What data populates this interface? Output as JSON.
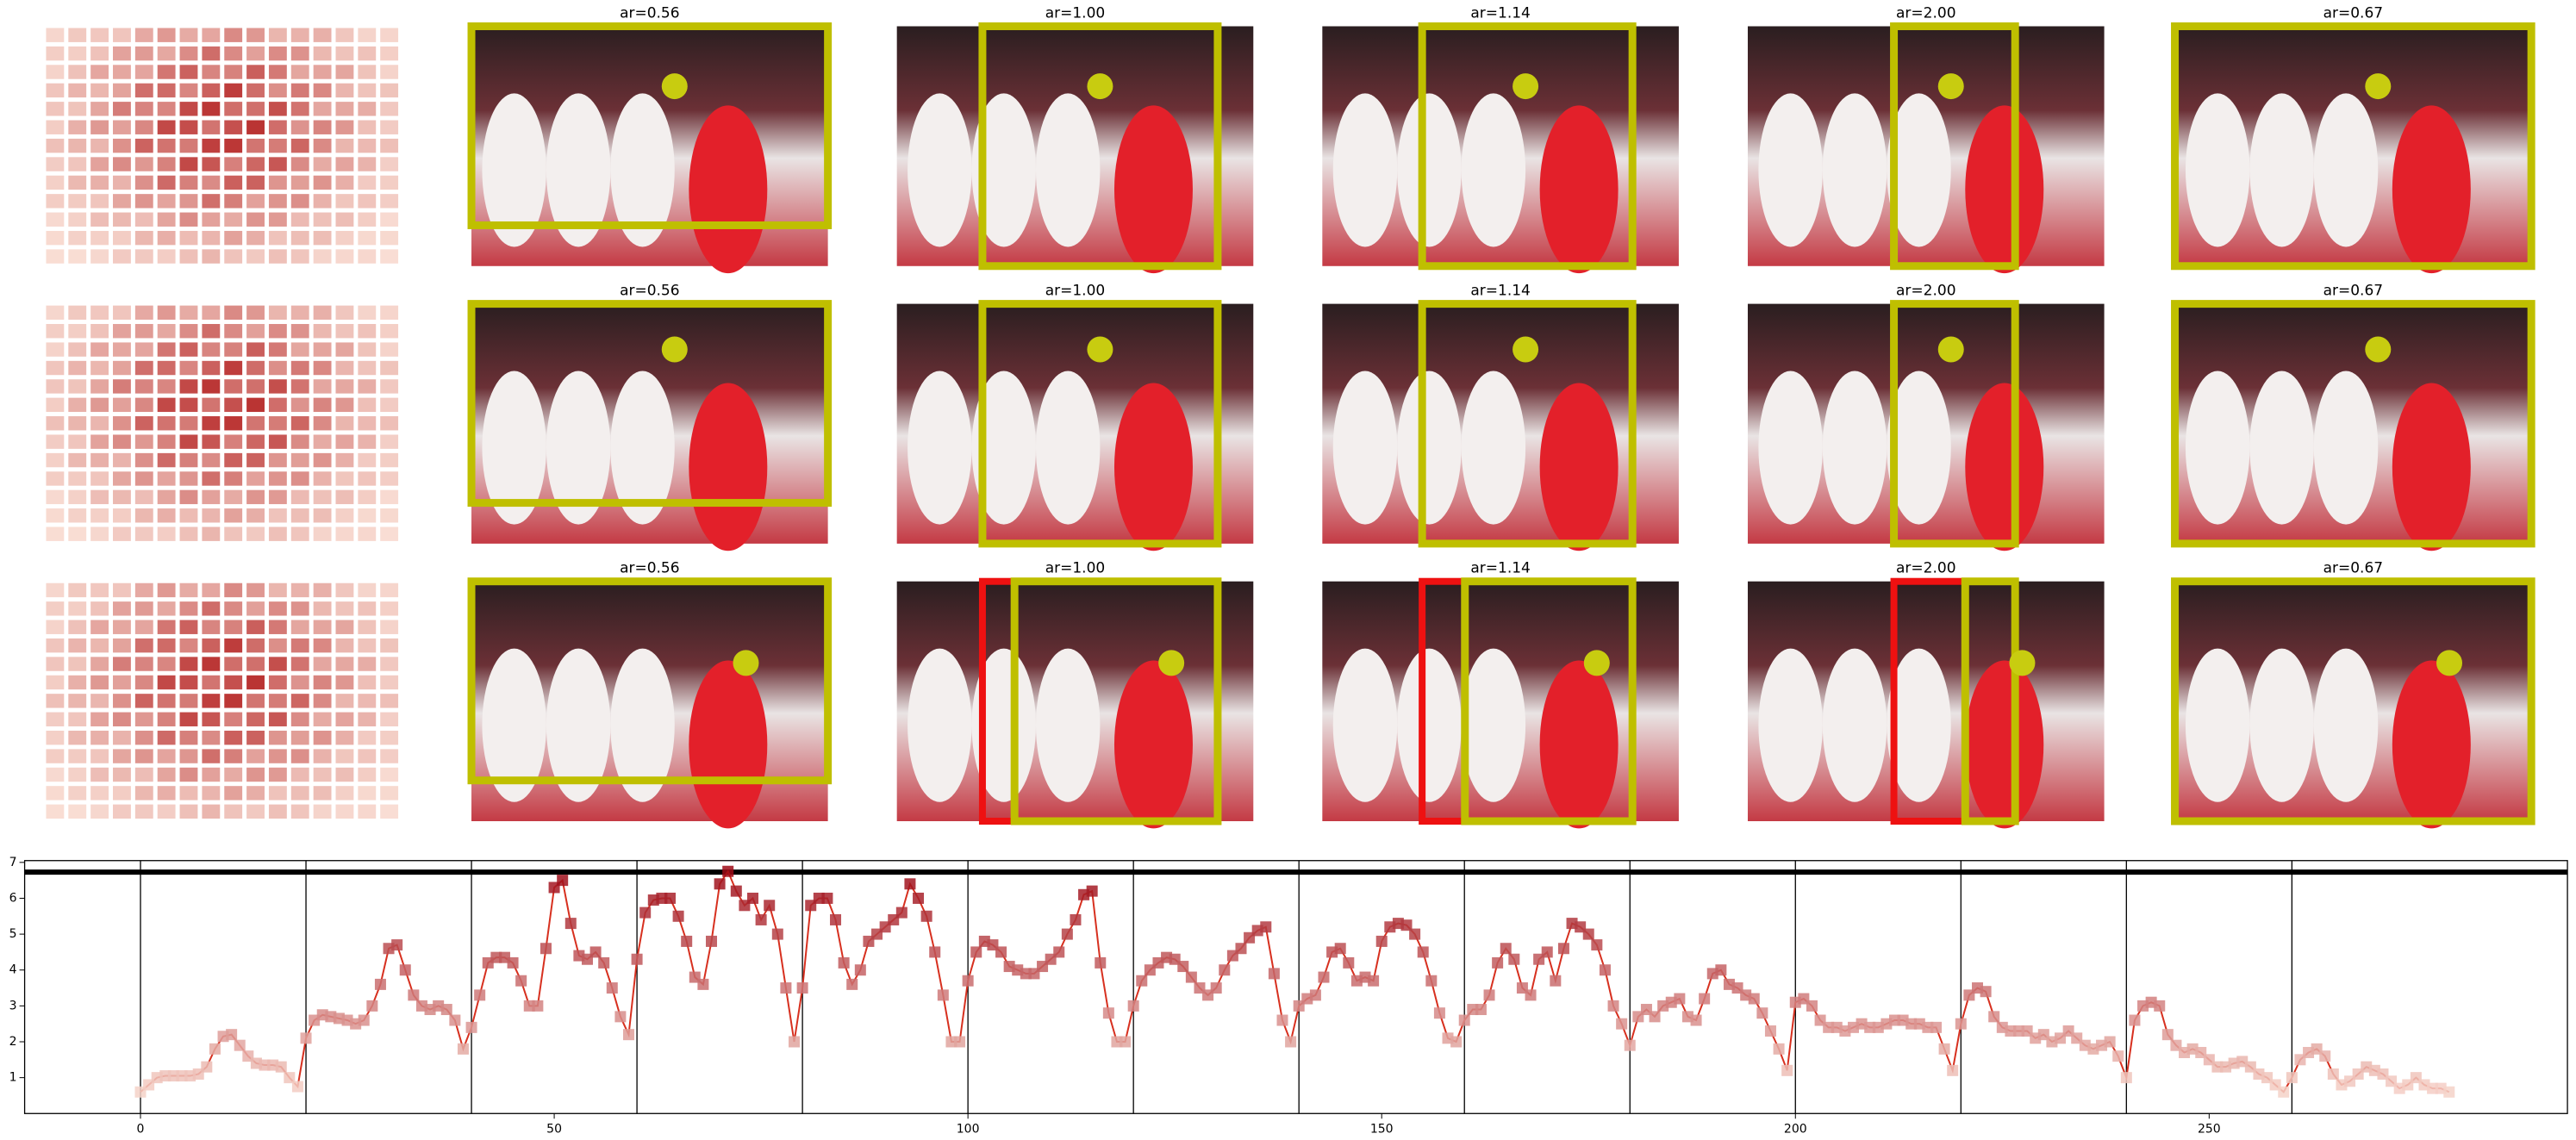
{
  "panels": {
    "rows": [
      [
        "ar=0.56",
        "ar=1.00",
        "ar=1.14",
        "ar=2.00",
        "ar=0.67"
      ],
      [
        "ar=0.56",
        "ar=1.00",
        "ar=1.14",
        "ar=2.00",
        "ar=0.67"
      ],
      [
        "ar=0.56",
        "ar=1.00",
        "ar=1.14",
        "ar=2.00",
        "ar=0.67"
      ]
    ]
  },
  "chart_data": {
    "type": "line",
    "x": [
      0,
      1,
      2,
      3,
      4,
      5,
      6,
      7,
      8,
      9,
      10,
      11,
      12,
      13,
      14,
      15,
      16,
      17,
      18,
      19,
      20,
      21,
      22,
      23,
      24,
      25,
      26,
      27,
      28,
      29,
      30,
      31,
      32,
      33,
      34,
      35,
      36,
      37,
      38,
      39,
      40,
      41,
      42,
      43,
      44,
      45,
      46,
      47,
      48,
      49,
      50,
      51,
      52,
      53,
      54,
      55,
      56,
      57,
      58,
      59,
      60,
      61,
      62,
      63,
      64,
      65,
      66,
      67,
      68,
      69,
      70,
      71,
      72,
      73,
      74,
      75,
      76,
      77,
      78,
      79,
      80,
      81,
      82,
      83,
      84,
      85,
      86,
      87,
      88,
      89,
      90,
      91,
      92,
      93,
      94,
      95,
      96,
      97,
      98,
      99,
      100,
      101,
      102,
      103,
      104,
      105,
      106,
      107,
      108,
      109,
      110,
      111,
      112,
      113,
      114,
      115,
      116,
      117,
      118,
      119,
      120,
      121,
      122,
      123,
      124,
      125,
      126,
      127,
      128,
      129,
      130,
      131,
      132,
      133,
      134,
      135,
      136,
      137,
      138,
      139,
      140,
      141,
      142,
      143,
      144,
      145,
      146,
      147,
      148,
      149,
      150,
      151,
      152,
      153,
      154,
      155,
      156,
      157,
      158,
      159,
      160,
      161,
      162,
      163,
      164,
      165,
      166,
      167,
      168,
      169,
      170,
      171,
      172,
      173,
      174,
      175,
      176,
      177,
      178,
      179,
      180,
      181,
      182,
      183,
      184,
      185,
      186,
      187,
      188,
      189,
      190,
      191,
      192,
      193,
      194,
      195,
      196,
      197,
      198,
      199,
      200,
      201,
      202,
      203,
      204,
      205,
      206,
      207,
      208,
      209,
      210,
      211,
      212,
      213,
      214,
      215,
      216,
      217,
      218,
      219,
      220,
      221,
      222,
      223,
      224,
      225,
      226,
      227,
      228,
      229,
      230,
      231,
      232,
      233,
      234,
      235,
      236,
      237,
      238,
      239,
      240,
      241,
      242,
      243,
      244,
      245,
      246,
      247,
      248,
      249,
      250,
      251,
      252,
      253,
      254,
      255,
      256,
      257,
      258,
      259,
      260,
      261,
      262,
      263,
      264,
      265,
      266,
      267,
      268,
      269,
      270,
      271,
      272,
      273,
      274,
      275,
      276,
      277,
      278,
      279
    ],
    "values": [
      0.6,
      0.8,
      1.0,
      1.05,
      1.05,
      1.05,
      1.05,
      1.1,
      1.3,
      1.8,
      2.15,
      2.2,
      1.9,
      1.6,
      1.4,
      1.35,
      1.35,
      1.3,
      1.0,
      0.75,
      2.1,
      2.6,
      2.75,
      2.7,
      2.65,
      2.6,
      2.5,
      2.6,
      3.0,
      3.6,
      4.6,
      4.7,
      4.0,
      3.3,
      3.0,
      2.9,
      3.0,
      2.9,
      2.6,
      1.8,
      2.4,
      3.3,
      4.2,
      4.35,
      4.35,
      4.2,
      3.7,
      3.0,
      3.0,
      4.6,
      6.3,
      6.5,
      5.3,
      4.4,
      4.3,
      4.5,
      4.2,
      3.5,
      2.7,
      2.2,
      4.3,
      5.6,
      5.95,
      6.0,
      6.0,
      5.5,
      4.8,
      3.8,
      3.6,
      4.8,
      6.4,
      6.75,
      6.2,
      5.8,
      6.0,
      5.4,
      5.8,
      5.0,
      3.5,
      2.0,
      3.5,
      5.8,
      6.0,
      6.0,
      5.4,
      4.2,
      3.6,
      4.0,
      4.8,
      5.0,
      5.2,
      5.4,
      5.6,
      6.4,
      6.0,
      5.5,
      4.5,
      3.3,
      2.0,
      2.0,
      3.7,
      4.5,
      4.8,
      4.7,
      4.5,
      4.1,
      4.0,
      3.9,
      3.9,
      4.1,
      4.3,
      4.5,
      5.0,
      5.4,
      6.1,
      6.2,
      4.2,
      2.8,
      2.0,
      2.0,
      3.0,
      3.7,
      4.0,
      4.2,
      4.35,
      4.3,
      4.1,
      3.8,
      3.5,
      3.3,
      3.5,
      4.0,
      4.4,
      4.6,
      4.9,
      5.1,
      5.2,
      3.9,
      2.6,
      2.0,
      3.0,
      3.2,
      3.3,
      3.8,
      4.5,
      4.6,
      4.2,
      3.7,
      3.8,
      3.7,
      4.8,
      5.2,
      5.3,
      5.25,
      5.0,
      4.5,
      3.7,
      2.8,
      2.1,
      2.0,
      2.6,
      2.9,
      2.9,
      3.3,
      4.2,
      4.6,
      4.3,
      3.5,
      3.3,
      4.3,
      4.5,
      3.7,
      4.6,
      5.3,
      5.2,
      5.0,
      4.7,
      4.0,
      3.0,
      2.5,
      1.9,
      2.7,
      2.9,
      2.7,
      3.0,
      3.1,
      3.2,
      2.7,
      2.6,
      3.2,
      3.9,
      4.0,
      3.6,
      3.5,
      3.3,
      3.2,
      2.8,
      2.3,
      1.8,
      1.2,
      3.1,
      3.2,
      3.0,
      2.6,
      2.4,
      2.4,
      2.3,
      2.4,
      2.5,
      2.4,
      2.4,
      2.5,
      2.6,
      2.6,
      2.5,
      2.5,
      2.4,
      2.4,
      1.8,
      1.2,
      2.5,
      3.3,
      3.5,
      3.4,
      2.7,
      2.4,
      2.3,
      2.3,
      2.3,
      2.1,
      2.2,
      2.0,
      2.1,
      2.3,
      2.1,
      1.9,
      1.8,
      1.9,
      2.0,
      1.6,
      1.0,
      2.6,
      3.0,
      3.1,
      3.0,
      2.2,
      1.9,
      1.7,
      1.8,
      1.7,
      1.5,
      1.3,
      1.3,
      1.4,
      1.45,
      1.3,
      1.1,
      1.0,
      0.8,
      0.6,
      1.0,
      1.5,
      1.7,
      1.8,
      1.6,
      1.1,
      0.8,
      0.9,
      1.1,
      1.3,
      1.2,
      1.1,
      0.9,
      0.7,
      0.8,
      1.0,
      0.8,
      0.7,
      0.7,
      0.6
    ],
    "line_color": "#d7301f",
    "colormap": [
      "#fee5d9",
      "#99000d"
    ],
    "vlines": [
      0,
      20,
      40,
      60,
      80,
      100,
      120,
      140,
      160,
      180,
      200,
      220,
      240,
      260
    ],
    "hline": 6.73,
    "xlim": [
      -14,
      293.3
    ],
    "ylim": [
      0,
      7.05
    ],
    "xticks": [
      0,
      50,
      100,
      150,
      200,
      250
    ],
    "yticks": [
      1,
      2,
      3,
      4,
      5,
      6,
      7
    ]
  }
}
